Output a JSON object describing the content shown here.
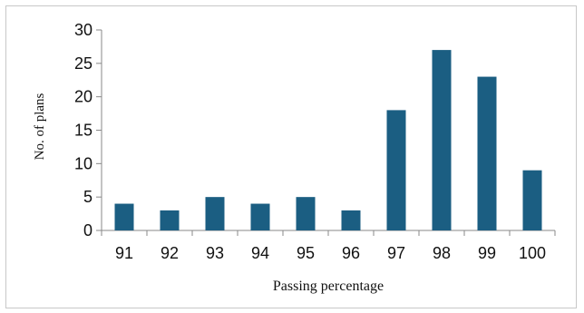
{
  "chart_data": {
    "type": "bar",
    "categories": [
      "91",
      "92",
      "93",
      "94",
      "95",
      "96",
      "97",
      "98",
      "99",
      "100"
    ],
    "values": [
      4,
      3,
      5,
      4,
      5,
      3,
      18,
      27,
      23,
      9
    ],
    "xlabel": "Passing percentage",
    "ylabel": "No. of plans",
    "ylim": [
      0,
      30
    ],
    "yticks": [
      0,
      5,
      10,
      15,
      20,
      25,
      30
    ],
    "bar_color": "#1b5e82",
    "grid": false,
    "legend": "none"
  }
}
